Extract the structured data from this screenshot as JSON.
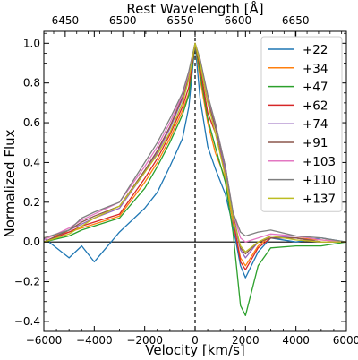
{
  "chart_data": {
    "type": "line",
    "xlabel": "Velocity [km/s]",
    "ylabel": "Normalized Flux",
    "top_xlabel": "Rest Wavelength [Å]",
    "xlim": [
      -6000,
      6000
    ],
    "ylim": [
      -0.45,
      1.06
    ],
    "x_ticks": [
      -6000,
      -4000,
      -2000,
      0,
      2000,
      4000,
      6000
    ],
    "x_tick_labels": [
      "−6000",
      "−4000",
      "−2000",
      "0",
      "2000",
      "4000",
      "6000"
    ],
    "y_ticks": [
      -0.4,
      -0.2,
      0.0,
      0.2,
      0.4,
      0.6,
      0.8,
      1.0
    ],
    "y_tick_labels": [
      "−0.4",
      "−0.2",
      "0.0",
      "0.2",
      "0.4",
      "0.6",
      "0.8",
      "1.0"
    ],
    "top_ticks": [
      6450,
      6500,
      6550,
      6600,
      6650
    ],
    "top_tick_labels": [
      "6450",
      "6500",
      "6550",
      "6600",
      "6650"
    ],
    "reference_lines": {
      "horizontal_y": 0.0,
      "vertical_x_dashed": 0
    },
    "grid": false,
    "legend_position": "upper-right",
    "x": [
      -6000,
      -5000,
      -4500,
      -4000,
      -3000,
      -2000,
      -1500,
      -1000,
      -500,
      -250,
      0,
      200,
      500,
      800,
      1200,
      1500,
      1800,
      2000,
      2500,
      3000,
      4000,
      5000,
      6000
    ],
    "series": [
      {
        "name": "+22",
        "color": "#1f77b4",
        "values": [
          0.02,
          -0.08,
          -0.02,
          -0.1,
          0.05,
          0.17,
          0.25,
          0.38,
          0.52,
          0.68,
          1.0,
          0.72,
          0.48,
          0.37,
          0.24,
          0.08,
          -0.12,
          -0.18,
          -0.05,
          0.02,
          0.0,
          0.02,
          0.0
        ]
      },
      {
        "name": "+34",
        "color": "#ff7f0e",
        "values": [
          0.02,
          0.05,
          0.07,
          0.09,
          0.13,
          0.3,
          0.4,
          0.52,
          0.66,
          0.75,
          1.0,
          0.82,
          0.6,
          0.45,
          0.32,
          0.1,
          -0.08,
          -0.12,
          -0.02,
          0.03,
          0.02,
          0.01,
          0.0
        ]
      },
      {
        "name": "+47",
        "color": "#2ca02c",
        "values": [
          0.0,
          0.03,
          0.06,
          0.08,
          0.12,
          0.27,
          0.38,
          0.5,
          0.64,
          0.74,
          1.0,
          0.85,
          0.62,
          0.48,
          0.3,
          0.05,
          -0.32,
          -0.37,
          -0.12,
          -0.03,
          -0.02,
          -0.02,
          0.0
        ]
      },
      {
        "name": "+62",
        "color": "#d62728",
        "values": [
          0.0,
          0.05,
          0.08,
          0.1,
          0.14,
          0.32,
          0.42,
          0.54,
          0.68,
          0.78,
          1.0,
          0.88,
          0.65,
          0.55,
          0.35,
          0.12,
          -0.1,
          -0.14,
          -0.03,
          0.02,
          0.02,
          0.0,
          0.0
        ]
      },
      {
        "name": "+74",
        "color": "#9467bd",
        "values": [
          0.0,
          0.06,
          0.09,
          0.12,
          0.17,
          0.35,
          0.45,
          0.57,
          0.72,
          0.82,
          1.0,
          0.9,
          0.7,
          0.58,
          0.36,
          0.12,
          -0.04,
          -0.08,
          0.0,
          0.03,
          0.02,
          0.0,
          0.0
        ]
      },
      {
        "name": "+91",
        "color": "#8c564b",
        "values": [
          0.0,
          0.06,
          0.1,
          0.13,
          0.18,
          0.36,
          0.46,
          0.58,
          0.73,
          0.83,
          1.0,
          0.91,
          0.72,
          0.58,
          0.38,
          0.14,
          -0.03,
          -0.06,
          0.0,
          0.02,
          0.02,
          0.0,
          0.0
        ]
      },
      {
        "name": "+103",
        "color": "#e377c2",
        "values": [
          0.01,
          0.07,
          0.11,
          0.14,
          0.2,
          0.38,
          0.48,
          0.6,
          0.74,
          0.85,
          1.0,
          0.92,
          0.73,
          0.6,
          0.38,
          0.15,
          0.02,
          0.0,
          0.02,
          0.04,
          0.03,
          0.01,
          0.0
        ]
      },
      {
        "name": "+110",
        "color": "#7f7f7f",
        "values": [
          0.02,
          0.06,
          0.12,
          0.15,
          0.2,
          0.4,
          0.5,
          0.62,
          0.75,
          0.86,
          1.0,
          0.92,
          0.74,
          0.6,
          0.38,
          0.15,
          0.05,
          0.03,
          0.05,
          0.06,
          0.03,
          0.02,
          0.0
        ]
      },
      {
        "name": "+137",
        "color": "#bcbd22",
        "values": [
          0.0,
          0.04,
          0.08,
          0.12,
          0.18,
          0.35,
          0.44,
          0.55,
          0.7,
          0.82,
          1.0,
          0.9,
          0.7,
          0.55,
          0.33,
          0.12,
          -0.02,
          -0.05,
          0.0,
          0.03,
          0.01,
          0.0,
          0.0
        ]
      }
    ]
  }
}
